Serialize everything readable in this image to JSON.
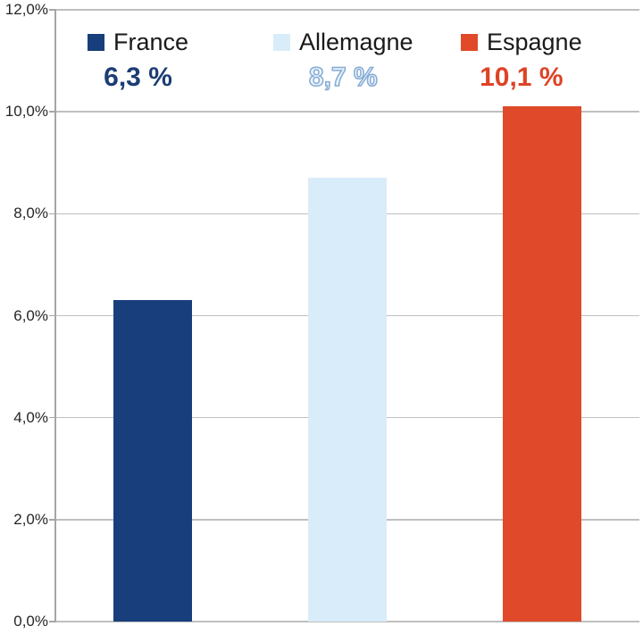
{
  "chart_data": {
    "type": "bar",
    "categories": [
      "France",
      "Allemagne",
      "Espagne"
    ],
    "values": [
      6.3,
      8.7,
      10.1
    ],
    "value_labels": [
      "6,3 %",
      "8,7 %",
      "10,1 %"
    ],
    "bar_colors": [
      "#183F7B",
      "#D9ECFA",
      "#E04A2B"
    ],
    "title": "",
    "xlabel": "",
    "ylabel": "",
    "ylim": [
      0,
      12
    ],
    "ytick_step": 2,
    "ytick_labels": [
      "0,0%",
      "2,0%",
      "4,0%",
      "6,0%",
      "8,0%",
      "10,0%",
      "12,0%"
    ],
    "grid": true,
    "legend_position": "top"
  },
  "legend": {
    "items": [
      {
        "label": "France",
        "value": "6,3 %",
        "swatch_color": "#183F7B",
        "value_color": "#1C3C74",
        "outlined": false
      },
      {
        "label": "Allemagne",
        "value": "8,7 %",
        "swatch_color": "#D9ECFA",
        "value_color": "#EAF3FC",
        "value_outline_color": "#85ABD3",
        "outlined": true
      },
      {
        "label": "Espagne",
        "value": "10,1 %",
        "swatch_color": "#E04A2B",
        "value_color": "#DE4327",
        "outlined": false
      }
    ]
  },
  "colors": {
    "background": "#FFFFFF",
    "axis": "#A6A6A6",
    "gridline": "#BFBFBF",
    "tick_label": "#262626"
  }
}
